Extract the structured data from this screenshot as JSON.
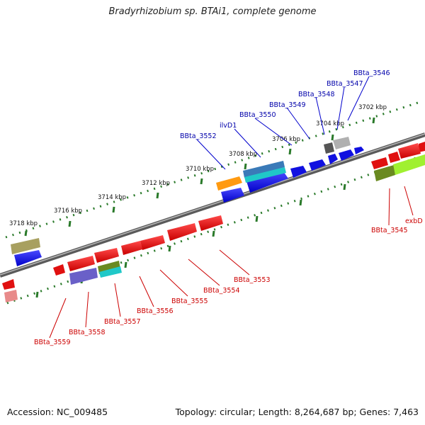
{
  "title": "Bradyrhizobium sp. BTAi1, complete genome",
  "footer": {
    "accession": "Accession: NC_009485",
    "topology": "Topology: circular; Length: 8,264,687 bp; Genes: 7,463"
  },
  "kbp_labels": [
    "3702 kbp",
    "3704 kbp",
    "3706 kbp",
    "3708 kbp",
    "3710 kbp",
    "3712 kbp",
    "3714 kbp",
    "3716 kbp",
    "3718 kbp"
  ],
  "top_labels": [
    "BBta_3546",
    "BBta_3547",
    "BBta_3548",
    "BBta_3549",
    "BBta_3550",
    "ilvD1",
    "BBta_3552"
  ],
  "bottom_labels": [
    "BBta_3545",
    "exbD",
    "BBta_3553",
    "BBta_3554",
    "BBta_3555",
    "BBta_3556",
    "BBta_3557",
    "BBta_3558",
    "BBta_3559"
  ],
  "colors": {
    "blue_gene": "#1010e0",
    "red_gene": "#e01010",
    "label_blue": "#0000aa",
    "label_red": "#cc0000",
    "backbone": "#777777",
    "ticks": "#2a7a2a"
  }
}
